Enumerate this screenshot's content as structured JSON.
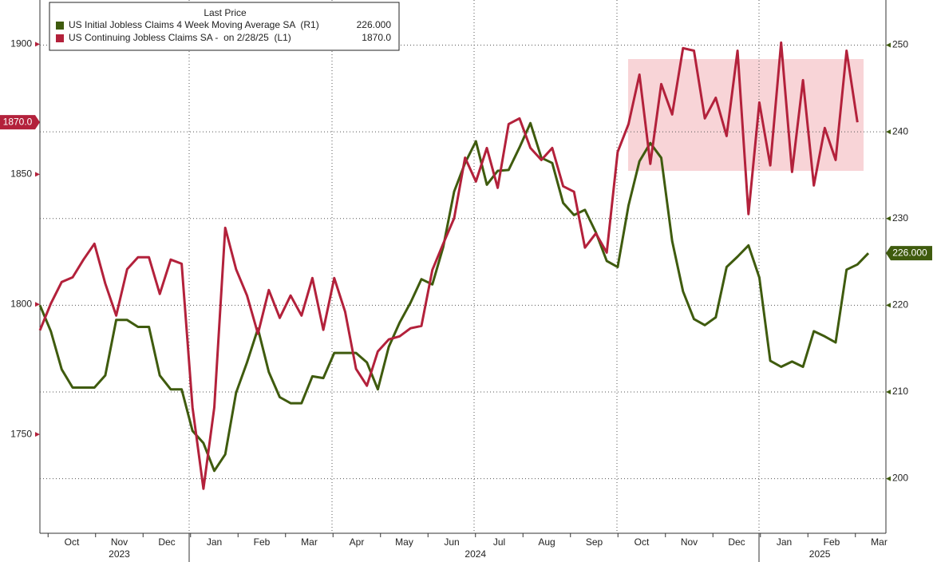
{
  "chart_data": {
    "type": "line",
    "legend_title": "Last Price",
    "legend_position": "upper left",
    "months": [
      "Oct",
      "Nov",
      "Dec",
      "Jan",
      "Feb",
      "Mar",
      "Apr",
      "May",
      "Jun",
      "Jul",
      "Aug",
      "Sep",
      "Oct",
      "Nov",
      "Dec",
      "Jan",
      "Feb",
      "Mar"
    ],
    "years": [
      "2023",
      "2024",
      "2025"
    ],
    "ylim": [
      1712,
      1917
    ],
    "yticks": [
      1750,
      1800,
      1850,
      1900
    ],
    "y2lim": [
      193.7,
      255.2
    ],
    "y2ticks": [
      200,
      210,
      220,
      230,
      240,
      250
    ],
    "grid": true,
    "series": [
      {
        "name": "US Initial Jobless Claims 4 Week Moving Average SA  (R1)",
        "color": "#3f5b0e",
        "axis": "y2",
        "last_value_label": "226.000",
        "values": [
          220,
          217,
          212.6,
          210.5,
          210.5,
          210.5,
          211.9,
          218.3,
          218.3,
          217.5,
          217.5,
          211.9,
          210.3,
          210.3,
          205.5,
          204.1,
          200.9,
          202.8,
          209.9,
          213.4,
          217.3,
          212.3,
          209.4,
          208.7,
          208.7,
          211.8,
          211.6,
          214.5,
          214.5,
          214.5,
          213.4,
          210.3,
          215.2,
          218,
          220.3,
          223,
          222.4,
          226.7,
          233.1,
          236.4,
          238.9,
          233.9,
          235.5,
          235.6,
          238.2,
          241,
          237,
          236.4,
          231.8,
          230.4,
          231,
          228.4,
          225.1,
          224.4,
          231.5,
          236.6,
          238.7,
          237,
          227.4,
          221.6,
          218.4,
          217.7,
          218.6,
          224.4,
          225.6,
          226.9,
          223.2,
          213.6,
          212.9,
          213.5,
          212.9,
          217,
          216.4,
          215.7,
          224.1,
          224.7,
          226
        ]
      },
      {
        "name": "US Continuing Jobless Claims SA -  on 2/28/25  (L1)",
        "color": "#b3213b",
        "axis": "y",
        "last_value_label": "1870.0",
        "values": [
          1790,
          1800.3,
          1808.6,
          1810.4,
          1817.2,
          1823.3,
          1808,
          1795.7,
          1813.5,
          1818.1,
          1818.1,
          1804,
          1817.2,
          1815.6,
          1760.4,
          1729.1,
          1760.4,
          1829.4,
          1813.5,
          1803.4,
          1788.7,
          1805.5,
          1794.8,
          1803.4,
          1795.7,
          1810.1,
          1790.2,
          1810.1,
          1797.2,
          1775.2,
          1768.7,
          1781.9,
          1786.5,
          1787.7,
          1790.8,
          1791.7,
          1813.2,
          1823.3,
          1833.1,
          1856.4,
          1847.2,
          1860.1,
          1844.8,
          1869.3,
          1871.5,
          1860.1,
          1855.5,
          1860.1,
          1845.4,
          1843.3,
          1821.8,
          1827.3,
          1819.9,
          1858.6,
          1869.3,
          1888.3,
          1854,
          1884.7,
          1873,
          1898.5,
          1897.5,
          1871.5,
          1879.4,
          1864.7,
          1897.5,
          1834.7,
          1877.6,
          1853.4,
          1900.6,
          1850.9,
          1886.2,
          1845.7,
          1867.8,
          1855.5,
          1897.5,
          1870,
          null
        ]
      }
    ]
  }
}
